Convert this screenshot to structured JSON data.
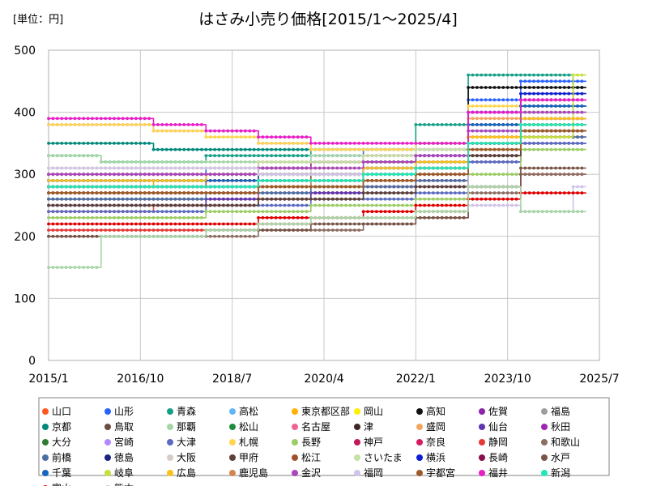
{
  "chart_data": {
    "type": "line",
    "title": "はさみ小売り価格[2015/1～2025/4]",
    "unit_label": "[単位：円]",
    "xlabel": "",
    "ylabel": "",
    "x_range": [
      "2015/1",
      "2025/7"
    ],
    "ylim": [
      0,
      500
    ],
    "y_ticks": [
      0,
      100,
      200,
      300,
      400,
      500
    ],
    "x_ticks": [
      "2015/1",
      "2016/10",
      "2018/7",
      "2020/4",
      "2022/1",
      "2023/10",
      "2025/7"
    ],
    "grid": true,
    "legend_position": "bottom",
    "series_note": "Approximate step levels per year (2015–2025), estimated from gridlines.",
    "years": [
      2015,
      2016,
      2017,
      2018,
      2019,
      2020,
      2021,
      2022,
      2023,
      2024,
      2025
    ],
    "series": [
      {
        "name": "山口",
        "color": "#ff5722",
        "values": [
          240,
          240,
          250,
          250,
          260,
          270,
          280,
          300,
          360,
          420,
          440
        ]
      },
      {
        "name": "山形",
        "color": "#2962ff",
        "values": [
          300,
          300,
          300,
          310,
          320,
          330,
          340,
          350,
          420,
          450,
          450
        ]
      },
      {
        "name": "青森",
        "color": "#16a085",
        "values": [
          330,
          320,
          320,
          330,
          330,
          340,
          340,
          380,
          460,
          460,
          440
        ]
      },
      {
        "name": "高松",
        "color": "#64b5f6",
        "values": [
          290,
          290,
          290,
          300,
          300,
          300,
          310,
          320,
          370,
          390,
          390
        ]
      },
      {
        "name": "東京都区部",
        "color": "#ffb300",
        "values": [
          280,
          280,
          290,
          290,
          300,
          310,
          310,
          320,
          380,
          420,
          420
        ]
      },
      {
        "name": "岡山",
        "color": "#ffee00",
        "values": [
          300,
          300,
          300,
          300,
          310,
          320,
          320,
          330,
          380,
          400,
          400
        ]
      },
      {
        "name": "高知",
        "color": "#111111",
        "values": [
          300,
          300,
          300,
          300,
          310,
          320,
          320,
          340,
          440,
          440,
          440
        ]
      },
      {
        "name": "佐賀",
        "color": "#8e24aa",
        "values": [
          270,
          270,
          270,
          270,
          280,
          280,
          290,
          300,
          350,
          380,
          380
        ]
      },
      {
        "name": "福島",
        "color": "#9e9e9e",
        "values": [
          280,
          280,
          280,
          280,
          290,
          300,
          300,
          310,
          360,
          400,
          410
        ]
      },
      {
        "name": "京都",
        "color": "#00897b",
        "values": [
          350,
          350,
          340,
          340,
          340,
          340,
          340,
          350,
          400,
          420,
          420
        ]
      },
      {
        "name": "鳥取",
        "color": "#6d4c41",
        "values": [
          260,
          260,
          260,
          260,
          270,
          270,
          280,
          290,
          330,
          360,
          360
        ]
      },
      {
        "name": "那覇",
        "color": "#a5d6a7",
        "values": [
          330,
          320,
          320,
          320,
          320,
          330,
          330,
          340,
          380,
          400,
          400
        ]
      },
      {
        "name": "松山",
        "color": "#1e8e3e",
        "values": [
          280,
          280,
          280,
          280,
          290,
          290,
          300,
          310,
          350,
          380,
          380
        ]
      },
      {
        "name": "名古屋",
        "color": "#f06292",
        "values": [
          260,
          260,
          260,
          260,
          270,
          280,
          280,
          290,
          330,
          360,
          360
        ]
      },
      {
        "name": "津",
        "color": "#3e2723",
        "values": [
          290,
          290,
          290,
          300,
          300,
          300,
          310,
          320,
          380,
          410,
          410
        ]
      },
      {
        "name": "盛岡",
        "color": "#f4a460",
        "values": [
          310,
          310,
          310,
          310,
          320,
          320,
          330,
          340,
          390,
          420,
          420
        ]
      },
      {
        "name": "仙台",
        "color": "#5e35b1",
        "values": [
          250,
          250,
          250,
          260,
          260,
          270,
          270,
          280,
          320,
          350,
          350
        ]
      },
      {
        "name": "秋田",
        "color": "#9c27b0",
        "values": [
          300,
          300,
          300,
          300,
          310,
          320,
          330,
          330,
          380,
          420,
          420
        ]
      },
      {
        "name": "大分",
        "color": "#2e7d32",
        "values": [
          270,
          270,
          270,
          270,
          280,
          280,
          290,
          300,
          350,
          370,
          370
        ]
      },
      {
        "name": "宮崎",
        "color": "#b388ff",
        "values": [
          380,
          380,
          370,
          370,
          350,
          340,
          340,
          340,
          400,
          420,
          420
        ]
      },
      {
        "name": "大津",
        "color": "#5c6bc0",
        "values": [
          240,
          240,
          240,
          250,
          250,
          260,
          260,
          270,
          320,
          350,
          350
        ]
      },
      {
        "name": "札幌",
        "color": "#ffd54f",
        "values": [
          380,
          380,
          370,
          360,
          350,
          340,
          340,
          350,
          410,
          430,
          430
        ]
      },
      {
        "name": "長野",
        "color": "#9ccc65",
        "values": [
          230,
          230,
          230,
          240,
          240,
          250,
          250,
          260,
          300,
          340,
          340
        ]
      },
      {
        "name": "神戸",
        "color": "#c2185b",
        "values": [
          270,
          270,
          270,
          270,
          280,
          280,
          290,
          300,
          340,
          370,
          370
        ]
      },
      {
        "name": "奈良",
        "color": "#d81b60",
        "values": [
          290,
          290,
          290,
          290,
          300,
          300,
          310,
          320,
          360,
          390,
          390
        ]
      },
      {
        "name": "静岡",
        "color": "#e53935",
        "values": [
          210,
          210,
          210,
          210,
          220,
          230,
          230,
          240,
          280,
          300,
          300
        ]
      },
      {
        "name": "和歌山",
        "color": "#8d6e63",
        "values": [
          200,
          200,
          200,
          200,
          210,
          210,
          220,
          230,
          270,
          300,
          300
        ]
      },
      {
        "name": "前橋",
        "color": "#4a6fa5",
        "values": [
          260,
          260,
          260,
          270,
          270,
          280,
          280,
          290,
          330,
          360,
          360
        ]
      },
      {
        "name": "徳島",
        "color": "#1a237e",
        "values": [
          280,
          280,
          280,
          280,
          290,
          290,
          300,
          310,
          350,
          380,
          380
        ]
      },
      {
        "name": "大阪",
        "color": "#d7ccc8",
        "values": [
          300,
          300,
          300,
          300,
          300,
          310,
          310,
          320,
          360,
          380,
          380
        ]
      },
      {
        "name": "甲府",
        "color": "#5d4037",
        "values": [
          250,
          250,
          250,
          250,
          260,
          260,
          270,
          280,
          330,
          370,
          370
        ]
      },
      {
        "name": "松江",
        "color": "#a0522d",
        "values": [
          280,
          280,
          280,
          290,
          290,
          300,
          300,
          310,
          350,
          380,
          380
        ]
      },
      {
        "name": "さいたま",
        "color": "#c5e1a5",
        "values": [
          310,
          310,
          310,
          310,
          320,
          320,
          330,
          340,
          380,
          400,
          400
        ]
      },
      {
        "name": "横浜",
        "color": "#0d1fd6",
        "values": [
          290,
          290,
          290,
          300,
          300,
          300,
          310,
          330,
          400,
          430,
          430
        ]
      },
      {
        "name": "長崎",
        "color": "#880e4f",
        "values": [
          270,
          270,
          270,
          270,
          280,
          290,
          290,
          300,
          350,
          390,
          390
        ]
      },
      {
        "name": "水戸",
        "color": "#795548",
        "values": [
          200,
          200,
          200,
          210,
          210,
          220,
          220,
          230,
          280,
          310,
          310
        ]
      },
      {
        "name": "千葉",
        "color": "#1565c0",
        "values": [
          290,
          290,
          290,
          290,
          300,
          300,
          310,
          320,
          380,
          410,
          410
        ]
      },
      {
        "name": "岐阜",
        "color": "#c6e03a",
        "values": [
          270,
          270,
          270,
          270,
          280,
          280,
          290,
          300,
          340,
          360,
          460
        ]
      },
      {
        "name": "広島",
        "color": "#f9c21b",
        "values": [
          290,
          290,
          290,
          300,
          300,
          300,
          310,
          320,
          360,
          390,
          390
        ]
      },
      {
        "name": "鹿児島",
        "color": "#d4854f",
        "values": [
          270,
          270,
          270,
          270,
          280,
          290,
          290,
          300,
          350,
          380,
          380
        ]
      },
      {
        "name": "金沢",
        "color": "#ab47bc",
        "values": [
          300,
          300,
          300,
          300,
          310,
          310,
          320,
          330,
          370,
          400,
          400
        ]
      },
      {
        "name": "福岡",
        "color": "#d1c4e9",
        "values": [
          310,
          310,
          310,
          310,
          300,
          300,
          300,
          300,
          250,
          240,
          280
        ]
      },
      {
        "name": "宇都宮",
        "color": "#9c5a2a",
        "values": [
          270,
          270,
          270,
          270,
          280,
          280,
          290,
          300,
          340,
          370,
          370
        ]
      },
      {
        "name": "福井",
        "color": "#e91ec5",
        "values": [
          390,
          390,
          380,
          370,
          360,
          350,
          350,
          350,
          400,
          420,
          420
        ]
      },
      {
        "name": "新潟",
        "color": "#1de9b6",
        "values": [
          280,
          280,
          280,
          280,
          290,
          290,
          300,
          310,
          350,
          380,
          380
        ]
      },
      {
        "name": "富山",
        "color": "#e00000",
        "values": [
          220,
          220,
          220,
          220,
          230,
          230,
          240,
          250,
          260,
          270,
          270
        ]
      },
      {
        "name": "熊本",
        "color": "#a8d5a8",
        "values": [
          150,
          200,
          200,
          210,
          220,
          230,
          230,
          240,
          280,
          240,
          240
        ]
      }
    ]
  }
}
